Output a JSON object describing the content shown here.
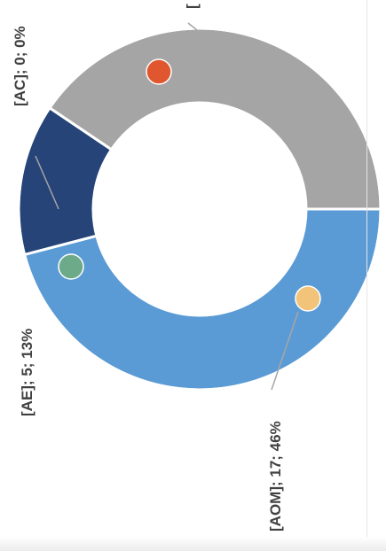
{
  "chart_data": {
    "type": "pie",
    "style": "donut",
    "slices": [
      {
        "name": "AOM",
        "value": 17,
        "percent": 46,
        "color": "#5b9bd5",
        "label": "[AOM]; 17; 46%"
      },
      {
        "name": "AE",
        "value": 5,
        "percent": 13,
        "color": "#264478",
        "label": "[AE]; 5; 13%"
      },
      {
        "name": "AC",
        "value": 0,
        "percent": 0,
        "color": "#ffffff",
        "label": "[AC]; 0; 0%"
      },
      {
        "name": "",
        "value": 15,
        "percent": 41,
        "color": "#a5a5a5",
        "label": "["
      }
    ],
    "markers": [
      {
        "slice": "AOM",
        "color": "#f2c47a"
      },
      {
        "slice": "AE",
        "color": "#6daa8a"
      },
      {
        "slice": "",
        "color": "#e0572f"
      }
    ],
    "legend": "none",
    "orientation": "rotated-clockwise"
  }
}
